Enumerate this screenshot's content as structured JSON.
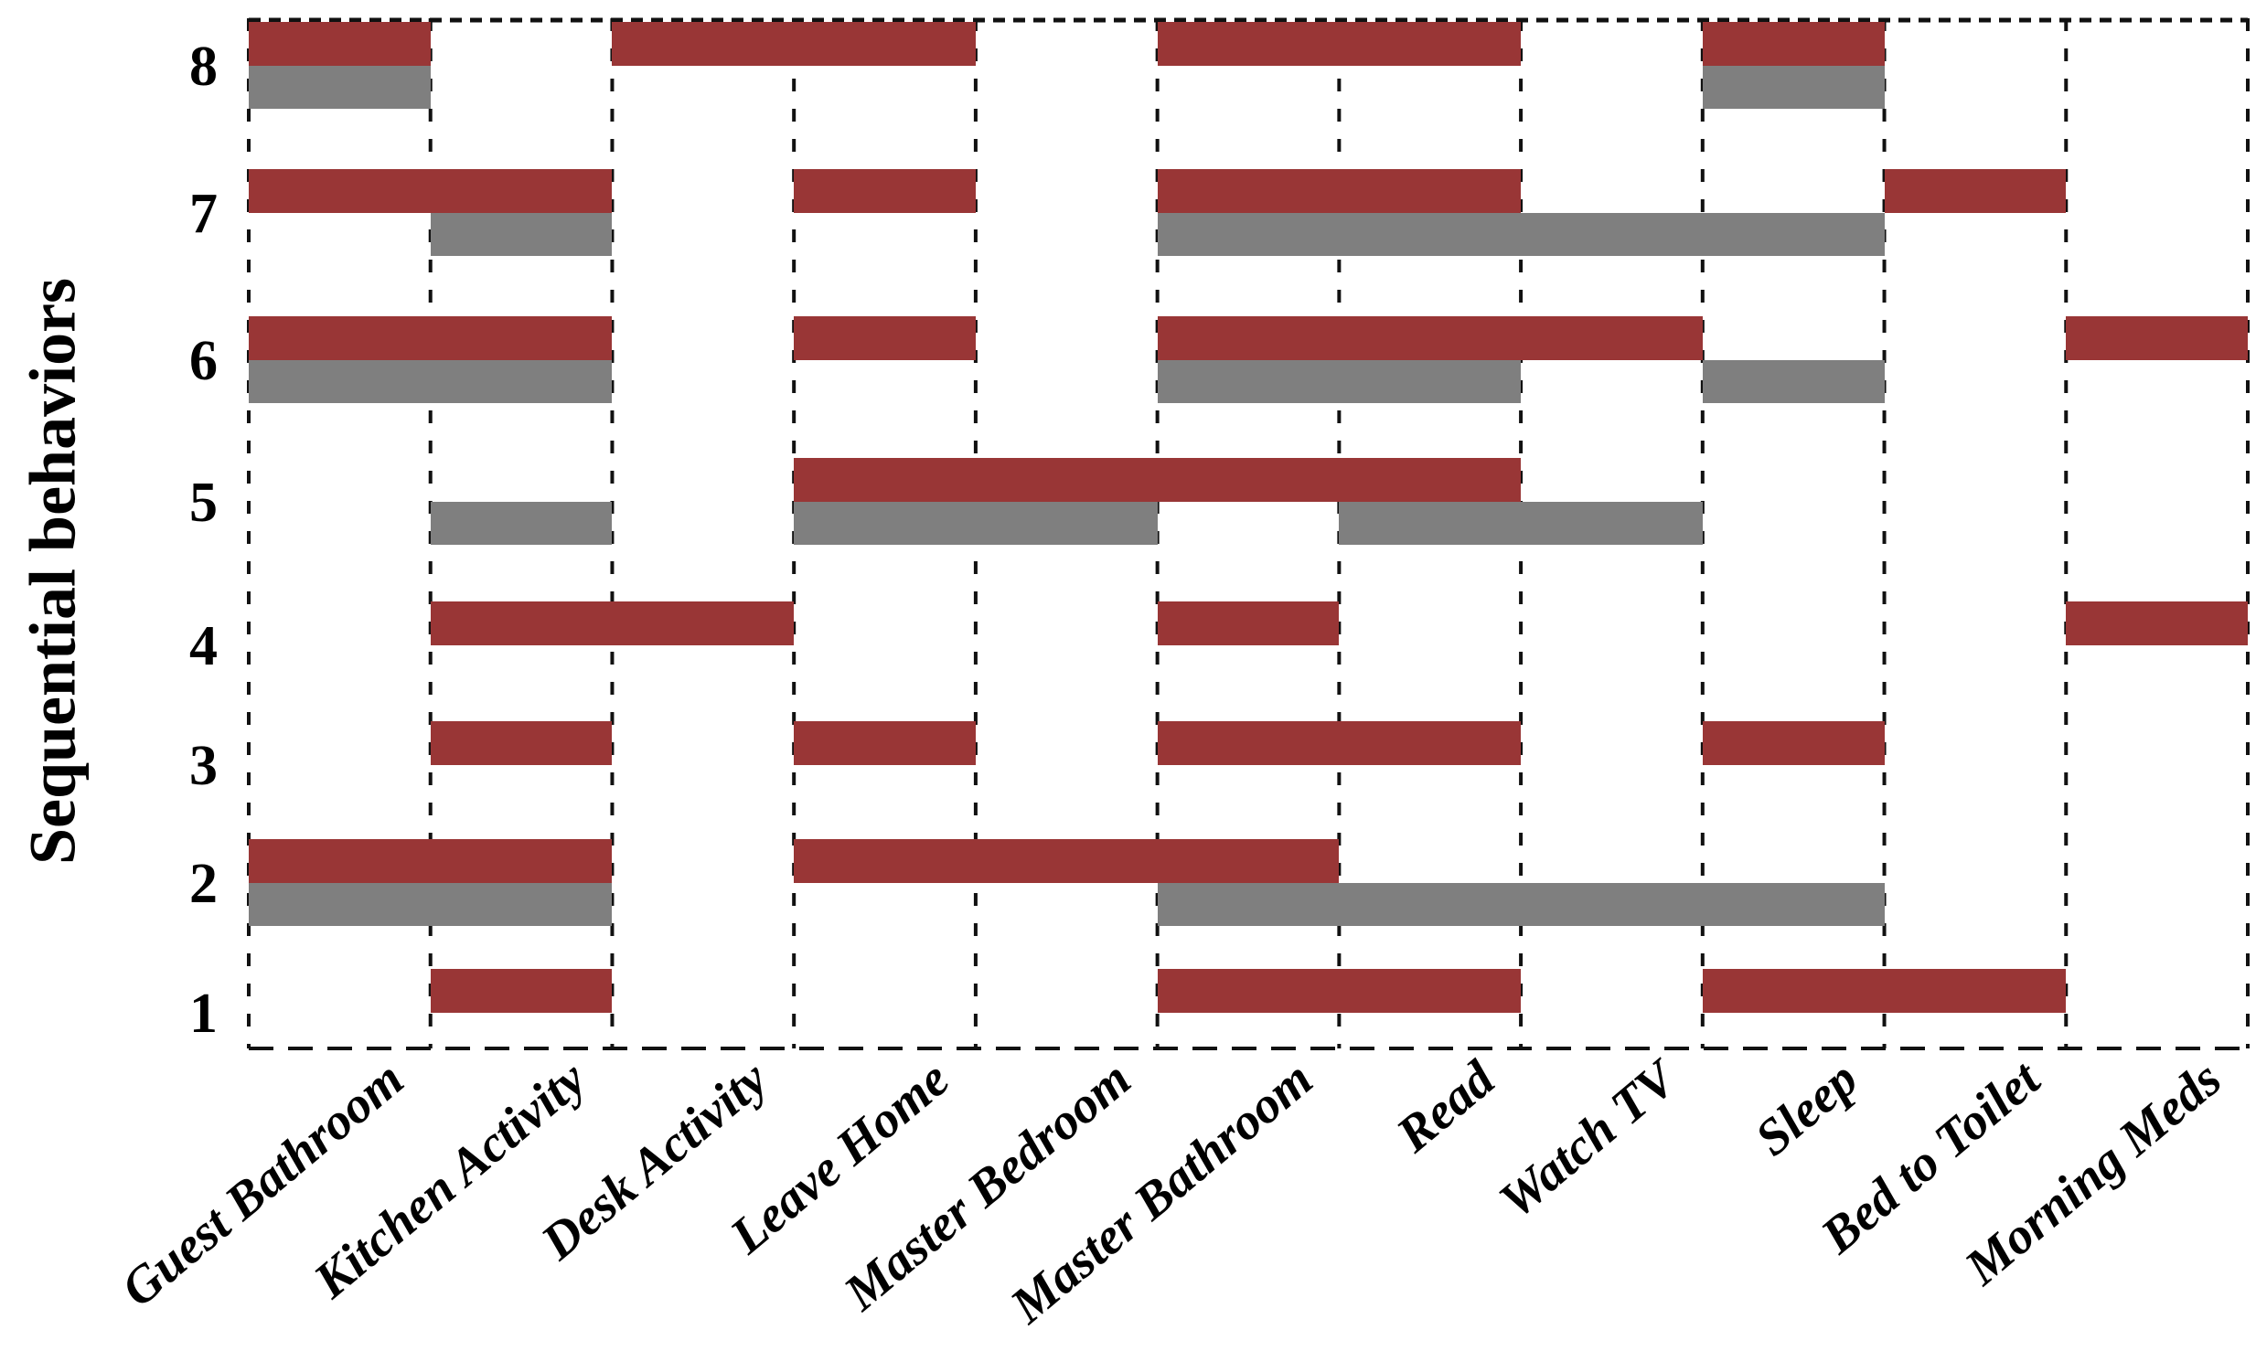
{
  "y_axis": {
    "title": "Sequential behaviors",
    "ticks": [
      "8",
      "7",
      "6",
      "5",
      "4",
      "3",
      "2",
      "1"
    ]
  },
  "x_axis": {
    "ticks": [
      "Guest Bathroom",
      "Kitchen Activity",
      "Desk Activity",
      "Leave Home",
      "Master Bedroom",
      "Master Bathroom",
      "Read",
      "Watch TV",
      "Sleep",
      "Bed to Toilet",
      "Morning Meds"
    ]
  },
  "chart_data": {
    "type": "heatmap",
    "title": "",
    "xlabel": "",
    "ylabel": "Sequential behaviors",
    "x_categories": [
      "Guest Bathroom",
      "Kitchen Activity",
      "Desk Activity",
      "Leave Home",
      "Master Bedroom",
      "Master Bathroom",
      "Read",
      "Watch TV",
      "Sleep",
      "Bed to Toilet",
      "Morning Meds"
    ],
    "y_categories": [
      "8",
      "7",
      "6",
      "5",
      "4",
      "3",
      "2",
      "1"
    ],
    "ylim": [
      1,
      8
    ],
    "grid": "dashed",
    "legend": "none",
    "colors": {
      "red": "#993636",
      "gray": "#7f7f7f",
      "line": "#111111",
      "background": "#ffffff"
    },
    "rows": [
      {
        "behavior": 8,
        "red_column_spans": [
          [
            1,
            1
          ],
          [
            3,
            4
          ],
          [
            6,
            7
          ],
          [
            9,
            9
          ]
        ],
        "gray_column_spans": [
          [
            1,
            1
          ],
          [
            9,
            9
          ]
        ]
      },
      {
        "behavior": 7,
        "red_column_spans": [
          [
            1,
            2
          ],
          [
            4,
            4
          ],
          [
            6,
            7
          ],
          [
            10,
            10
          ]
        ],
        "gray_column_spans": [
          [
            2,
            2
          ],
          [
            6,
            9
          ]
        ]
      },
      {
        "behavior": 6,
        "red_column_spans": [
          [
            1,
            2
          ],
          [
            4,
            4
          ],
          [
            6,
            8
          ],
          [
            11,
            11
          ]
        ],
        "gray_column_spans": [
          [
            1,
            2
          ],
          [
            6,
            7
          ],
          [
            9,
            9
          ]
        ]
      },
      {
        "behavior": 5,
        "red_column_spans": [
          [
            4,
            7
          ]
        ],
        "gray_column_spans": [
          [
            2,
            2
          ],
          [
            4,
            5
          ],
          [
            7,
            8
          ]
        ]
      },
      {
        "behavior": 4,
        "red_column_spans": [
          [
            2,
            3
          ],
          [
            6,
            6
          ],
          [
            11,
            11
          ]
        ],
        "gray_column_spans": []
      },
      {
        "behavior": 3,
        "red_column_spans": [
          [
            2,
            2
          ],
          [
            4,
            4
          ],
          [
            6,
            7
          ],
          [
            9,
            9
          ]
        ],
        "gray_column_spans": []
      },
      {
        "behavior": 2,
        "red_column_spans": [
          [
            1,
            2
          ],
          [
            4,
            6
          ]
        ],
        "gray_column_spans": [
          [
            1,
            2
          ],
          [
            6,
            9
          ]
        ]
      },
      {
        "behavior": 1,
        "red_column_spans": [
          [
            2,
            2
          ],
          [
            6,
            7
          ],
          [
            9,
            10
          ]
        ],
        "gray_column_spans": []
      }
    ]
  }
}
